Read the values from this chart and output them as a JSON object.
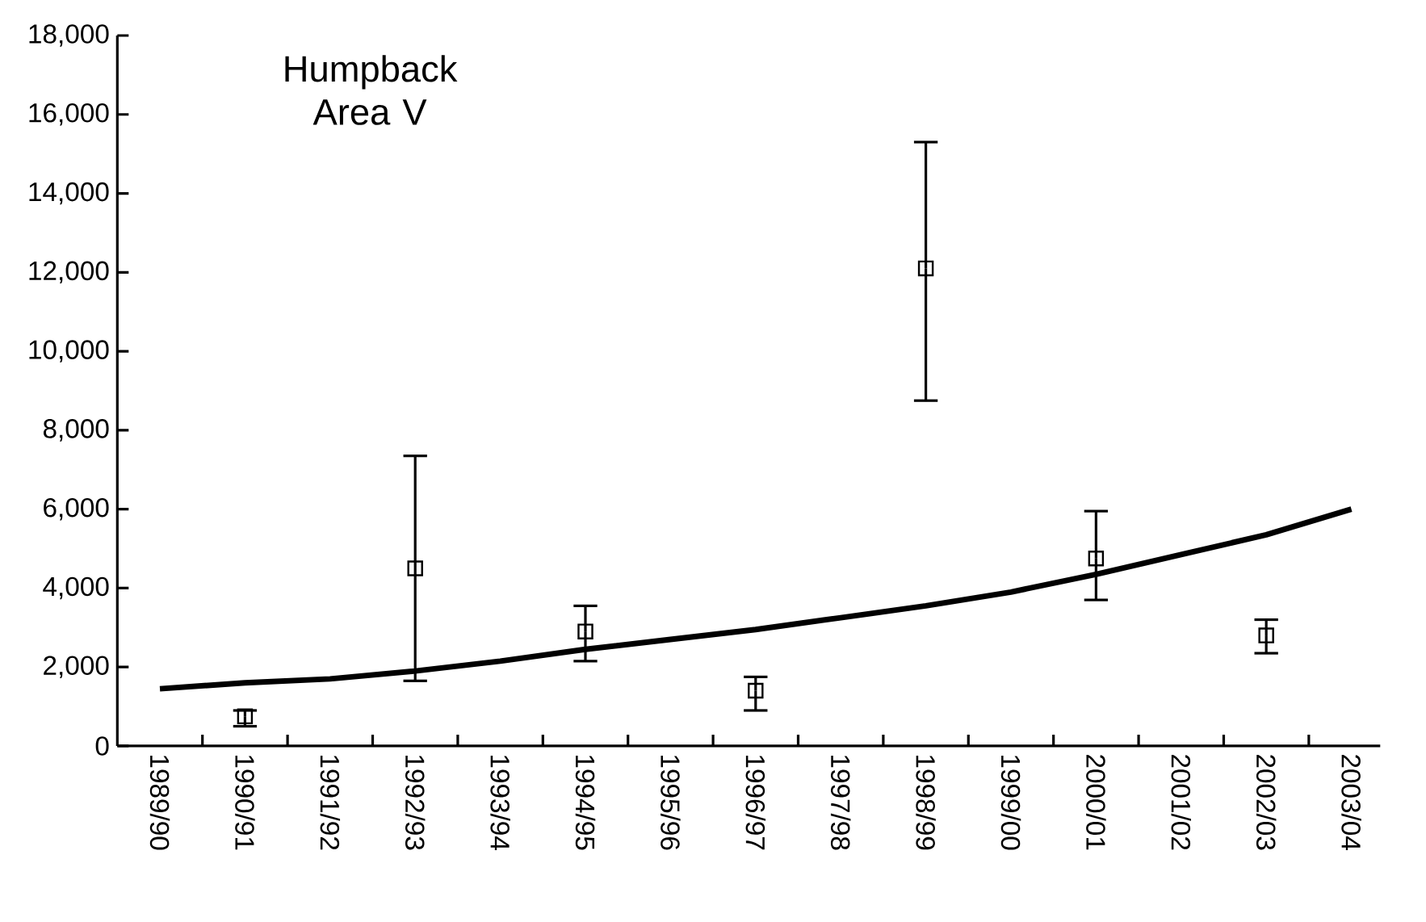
{
  "chart_data": {
    "type": "line",
    "title": "Humpback Area V",
    "categories": [
      "1989/90",
      "1990/91",
      "1991/92",
      "1992/93",
      "1993/94",
      "1994/95",
      "1995/96",
      "1996/97",
      "1997/98",
      "1998/99",
      "1999/00",
      "2000/01",
      "2001/02",
      "2002/03",
      "2003/04"
    ],
    "series": [
      {
        "color": "#000000",
        "marker": "none",
        "line_style": "solid",
        "values": [
          1450,
          1600,
          1700,
          1900,
          2150,
          2450,
          2700,
          2950,
          3250,
          3550,
          3900,
          4350,
          4850,
          5350,
          6000
        ]
      },
      {
        "type": "scatter",
        "color": "#000000",
        "marker": "square",
        "values": [
          null,
          750,
          null,
          4500,
          null,
          2900,
          null,
          1400,
          null,
          12100,
          null,
          4750,
          null,
          2800,
          null
        ],
        "errors": [
          null,
          [
            500,
            900
          ],
          null,
          [
            1650,
            7350
          ],
          null,
          [
            2150,
            3550
          ],
          null,
          [
            900,
            1750
          ],
          null,
          [
            8750,
            15300
          ],
          null,
          [
            3700,
            5950
          ],
          null,
          [
            2350,
            3200
          ],
          null
        ]
      }
    ],
    "ylim": [
      0,
      18000
    ],
    "yticks": [
      0,
      {
        "value": 2000,
        "label": "2,000"
      },
      {
        "value": 4000,
        "label": "4,000"
      },
      {
        "value": 6000,
        "label": "6,000"
      },
      {
        "value": 8000,
        "label": "8,000"
      },
      {
        "value": 10000,
        "label": "10,000"
      },
      {
        "value": 12000,
        "label": "12,000"
      },
      {
        "value": 14000,
        "label": "14,000"
      },
      {
        "value": 16000,
        "label": "16,000"
      },
      {
        "value": 18000,
        "label": "18,000"
      }
    ],
    "grid": false
  }
}
